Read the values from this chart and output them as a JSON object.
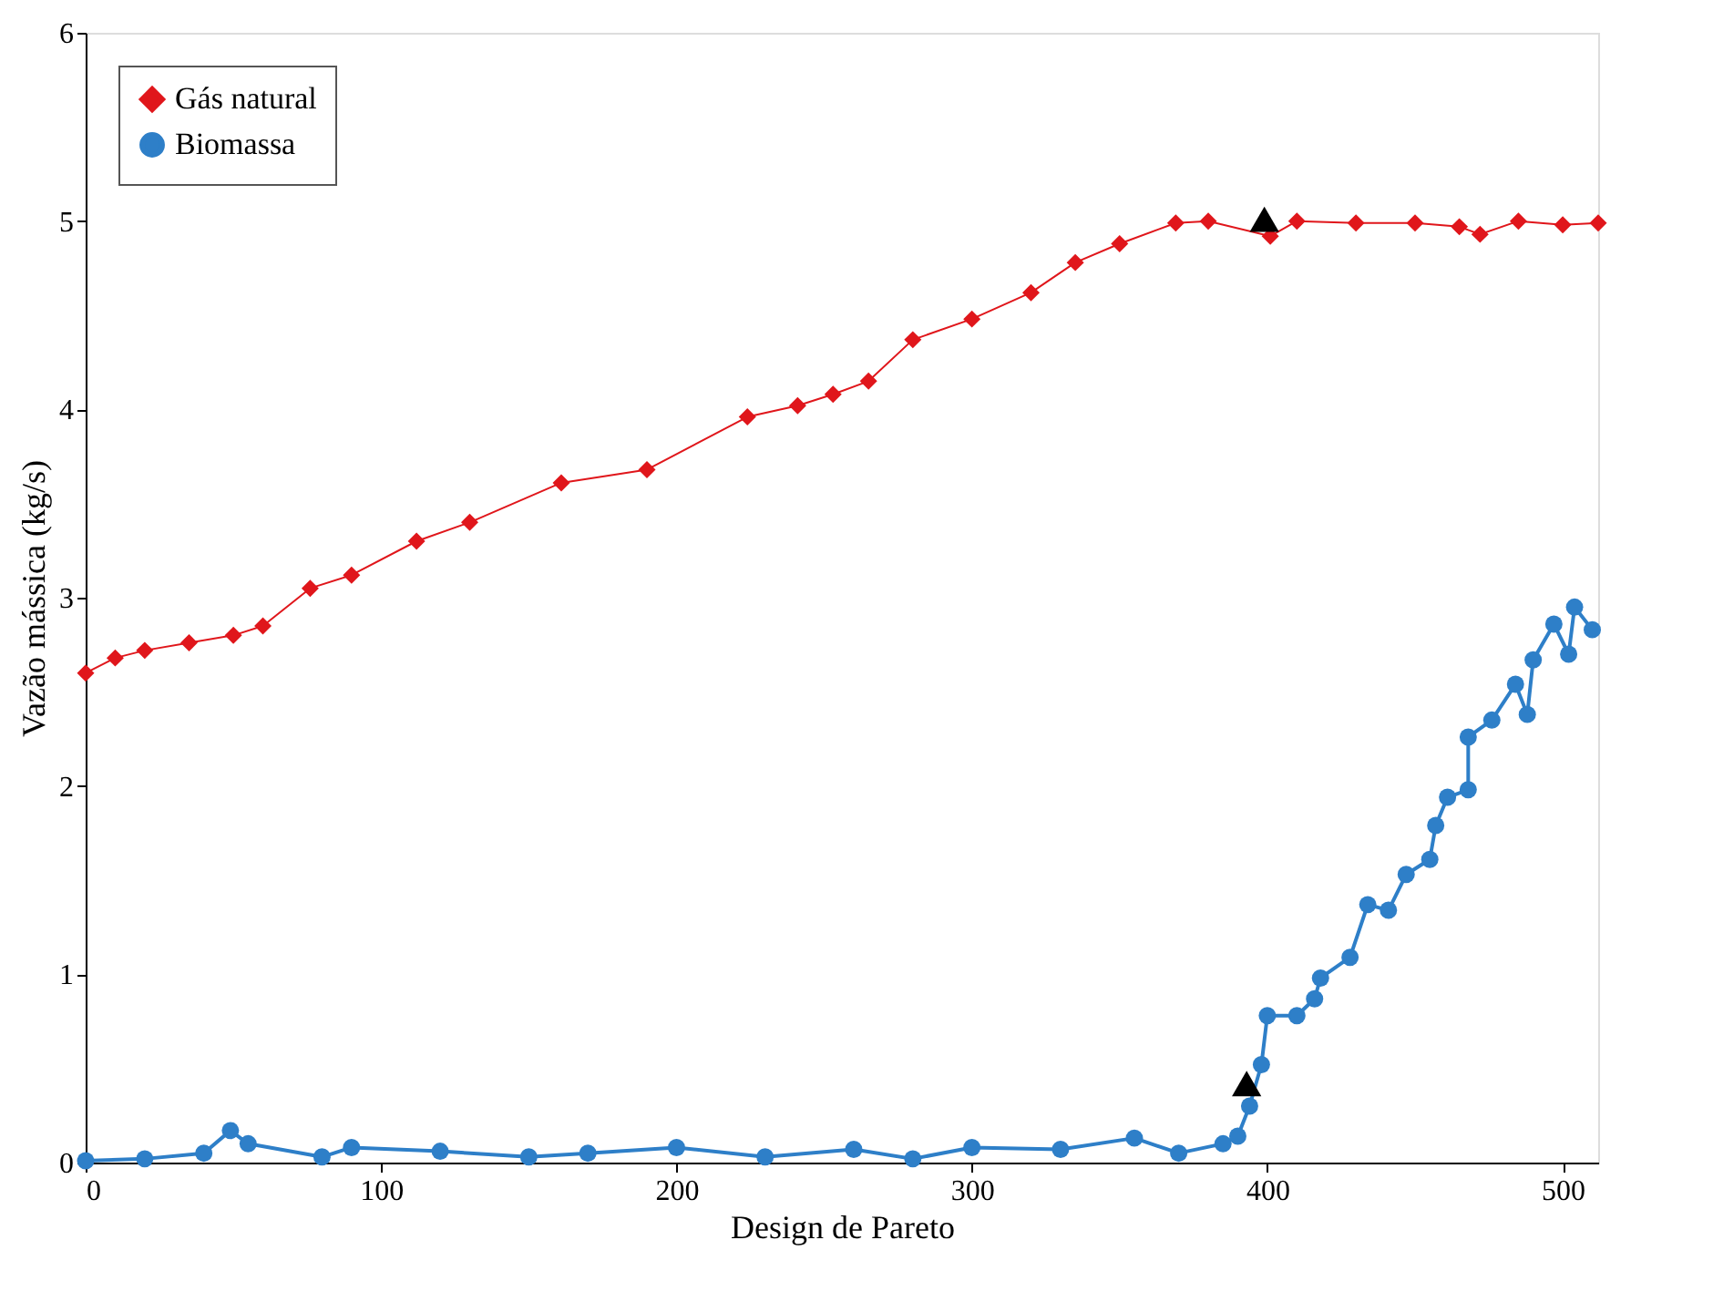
{
  "chart_data": {
    "type": "line",
    "xlabel": "Design de Pareto",
    "ylabel": "Vazão mássica (kg/s)",
    "xlim": [
      0,
      512
    ],
    "ylim": [
      0,
      6
    ],
    "xticks": [
      0,
      100,
      200,
      300,
      400,
      500
    ],
    "yticks": [
      0,
      1,
      2,
      3,
      4,
      5,
      6
    ],
    "grid": false,
    "legend": "top left",
    "line_style": "solid",
    "series": [
      {
        "name": "Gás natural",
        "color": "#e0161b",
        "marker": "diamond",
        "x": [
          0,
          10,
          20,
          35,
          50,
          60,
          76,
          90,
          112,
          130,
          161,
          190,
          224,
          241,
          253,
          265,
          280,
          300,
          320,
          335,
          350,
          369,
          380,
          401,
          410,
          430,
          450,
          465,
          472,
          485,
          500,
          512
        ],
        "values": [
          2.6,
          2.68,
          2.72,
          2.76,
          2.8,
          2.85,
          3.05,
          3.12,
          3.3,
          3.4,
          3.61,
          3.68,
          3.96,
          4.02,
          4.08,
          4.15,
          4.37,
          4.48,
          4.62,
          4.78,
          4.88,
          4.99,
          5.0,
          4.92,
          5.0,
          4.99,
          4.99,
          4.97,
          4.93,
          5.0,
          4.98,
          4.99
        ]
      },
      {
        "name": "Biomassa",
        "color": "#2e7fc8",
        "marker": "circle",
        "x": [
          0,
          20,
          40,
          49,
          55,
          80,
          90,
          120,
          150,
          170,
          200,
          230,
          260,
          280,
          300,
          330,
          355,
          370,
          385,
          390,
          394,
          398,
          400,
          410,
          416,
          418,
          428,
          434,
          441,
          447,
          455,
          457,
          461,
          468,
          468,
          476,
          484,
          488,
          490,
          497,
          502,
          504,
          510
        ],
        "values": [
          0.01,
          0.02,
          0.05,
          0.17,
          0.1,
          0.03,
          0.08,
          0.06,
          0.03,
          0.05,
          0.08,
          0.03,
          0.07,
          0.02,
          0.08,
          0.07,
          0.13,
          0.05,
          0.1,
          0.14,
          0.3,
          0.52,
          0.78,
          0.78,
          0.87,
          0.98,
          1.09,
          1.37,
          1.34,
          1.53,
          1.61,
          1.79,
          1.94,
          1.98,
          2.26,
          2.35,
          2.54,
          2.38,
          2.67,
          2.86,
          2.7,
          2.95,
          2.83
        ]
      },
      {
        "type": "scatter",
        "color": "#000000",
        "marker": "triangle",
        "x": [
          399,
          393
        ],
        "values": [
          5.01,
          0.42
        ]
      }
    ]
  }
}
